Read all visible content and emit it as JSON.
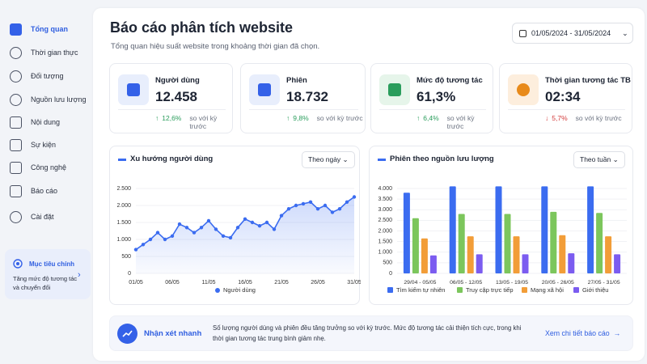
{
  "sidebar": {
    "items": [
      "Tổng quan",
      "Thời gian thực",
      "Đối tượng",
      "Nguồn lưu lượng",
      "Nội dung",
      "Sự kiện",
      "Công nghệ",
      "Báo cáo",
      "Cài đặt"
    ],
    "goal": {
      "title": "Mục tiêu chính",
      "text": "Tăng mức độ tương tác và chuyển đổi"
    }
  },
  "header": {
    "title": "Báo cáo phân tích website",
    "subtitle": "Tổng quan hiệu suất website trong khoảng thời gian đã chọn.",
    "date_range": "01/05/2024 - 31/05/2024"
  },
  "kpis": [
    {
      "label": "Người dùng",
      "value": "12.458",
      "change": "12,6%",
      "direction": "up",
      "note": "so với kỳ trước"
    },
    {
      "label": "Phiên",
      "value": "18.732",
      "change": "9,8%",
      "direction": "up",
      "note": "so với kỳ trước"
    },
    {
      "label": "Mức độ tương tác",
      "value": "61,3%",
      "change": "6,4%",
      "direction": "up",
      "note": "so với kỳ trước"
    },
    {
      "label": "Thời gian tương tác TB",
      "value": "02:34",
      "change": "5,7%",
      "direction": "down",
      "note": "so với kỳ trước"
    }
  ],
  "chart_data": [
    {
      "type": "line",
      "title": "Xu hướng người dùng",
      "dropdown": "Theo ngày",
      "legend": "Người dùng",
      "color": "#3b6cf0",
      "categories": [
        "01/05",
        null,
        null,
        null,
        null,
        "06/05",
        null,
        null,
        null,
        null,
        "11/05",
        null,
        null,
        null,
        null,
        "16/05",
        null,
        null,
        null,
        null,
        "21/05",
        null,
        null,
        null,
        null,
        "26/05",
        null,
        null,
        null,
        null,
        "31/05"
      ],
      "values": [
        700,
        850,
        1000,
        1200,
        1000,
        1100,
        1450,
        1350,
        1200,
        1350,
        1550,
        1300,
        1100,
        1050,
        1350,
        1600,
        1500,
        1400,
        1500,
        1300,
        1700,
        1900,
        2000,
        2050,
        2100,
        1900,
        2000,
        1800,
        1900,
        2100,
        2250
      ],
      "ylim": [
        0,
        2500
      ],
      "yticks": [
        0,
        500,
        {
          "value": 1000,
          "label": "1.000"
        },
        {
          "value": 1500,
          "label": "1.500"
        },
        {
          "value": 2000,
          "label": "2.000"
        },
        {
          "value": 2500,
          "label": "2.500"
        }
      ],
      "grid": true
    },
    {
      "type": "bar",
      "title": "Phiên theo nguồn lưu lượng",
      "dropdown": "Theo tuần",
      "categories": [
        "29/04 - 05/05",
        "06/05 - 12/05",
        "13/05 - 19/05",
        "20/05 - 26/05",
        "27/05 - 31/05"
      ],
      "series": [
        {
          "name": "Tìm kiếm tự nhiên",
          "color": "#3b6cf0",
          "values": [
            3800,
            4100,
            4100,
            4100,
            4100
          ]
        },
        {
          "name": "Truy cập trực tiếp",
          "color": "#7cc65c",
          "values": [
            2600,
            2800,
            2800,
            2900,
            2850
          ]
        },
        {
          "name": "Mạng xã hội",
          "color": "#f29d38",
          "values": [
            1650,
            1750,
            1750,
            1800,
            1750
          ]
        },
        {
          "name": "Giới thiệu",
          "color": "#7b5cf0",
          "values": [
            850,
            900,
            900,
            950,
            900
          ]
        }
      ],
      "ylim": [
        0,
        4000
      ],
      "yticks": [
        0,
        500,
        {
          "value": 1000,
          "label": "1.000"
        },
        {
          "value": 1500,
          "label": "1.500"
        },
        {
          "value": 2000,
          "label": "2.000"
        },
        {
          "value": 2500,
          "label": "2.500"
        },
        {
          "value": 3000,
          "label": "3.000"
        },
        {
          "value": 3500,
          "label": "3.500"
        },
        {
          "value": 4000,
          "label": "4.000"
        }
      ],
      "grid": true
    }
  ],
  "insight": {
    "title": "Nhận xét nhanh",
    "text": "Số lượng người dùng và phiên đều tăng trưởng so với kỳ trước. Mức độ tương tác cải thiện tích cực, trong khi thời gian tương tác trung bình giảm nhẹ.",
    "link": "Xem chi tiết báo cáo"
  }
}
